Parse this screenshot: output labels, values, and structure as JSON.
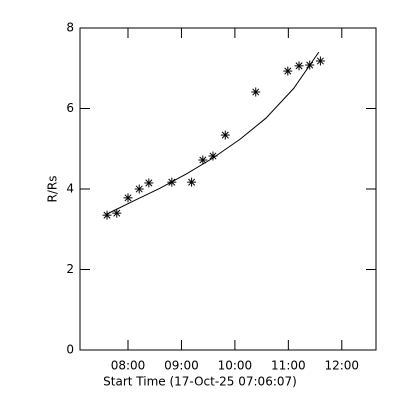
{
  "chart_data": {
    "type": "scatter",
    "xlabel": "Start Time (17-Oct-25 07:06:07)",
    "ylabel": "R/Rs",
    "xlim": [
      7.102,
      12.64
    ],
    "xticks": [
      {
        "value": 8,
        "label": "08:00"
      },
      {
        "value": 9,
        "label": "09:00"
      },
      {
        "value": 10,
        "label": "10:00"
      },
      {
        "value": 11,
        "label": "11:00"
      },
      {
        "value": 12,
        "label": "12:00"
      }
    ],
    "ylim": [
      0,
      8
    ],
    "yticks": [
      0,
      2,
      4,
      6,
      8
    ],
    "color": "#000000",
    "series": [
      {
        "style": "marker",
        "x": [
          7.607,
          7.79,
          8.0,
          8.21,
          8.39,
          8.82,
          9.19,
          9.4,
          9.59,
          9.82,
          10.39,
          10.99,
          11.2,
          11.4,
          11.6
        ],
        "values": [
          3.35,
          3.4,
          3.78,
          4.0,
          4.15,
          4.17,
          4.17,
          4.72,
          4.82,
          5.34,
          6.41,
          6.93,
          7.06,
          7.08,
          7.18
        ]
      },
      {
        "style": "line",
        "x": [
          7.607,
          8.1,
          8.6,
          9.1,
          9.59,
          10.1,
          10.58,
          11.1,
          11.57
        ],
        "values": [
          3.38,
          3.7,
          4.02,
          4.38,
          4.77,
          5.24,
          5.76,
          6.5,
          7.4
        ]
      }
    ]
  }
}
